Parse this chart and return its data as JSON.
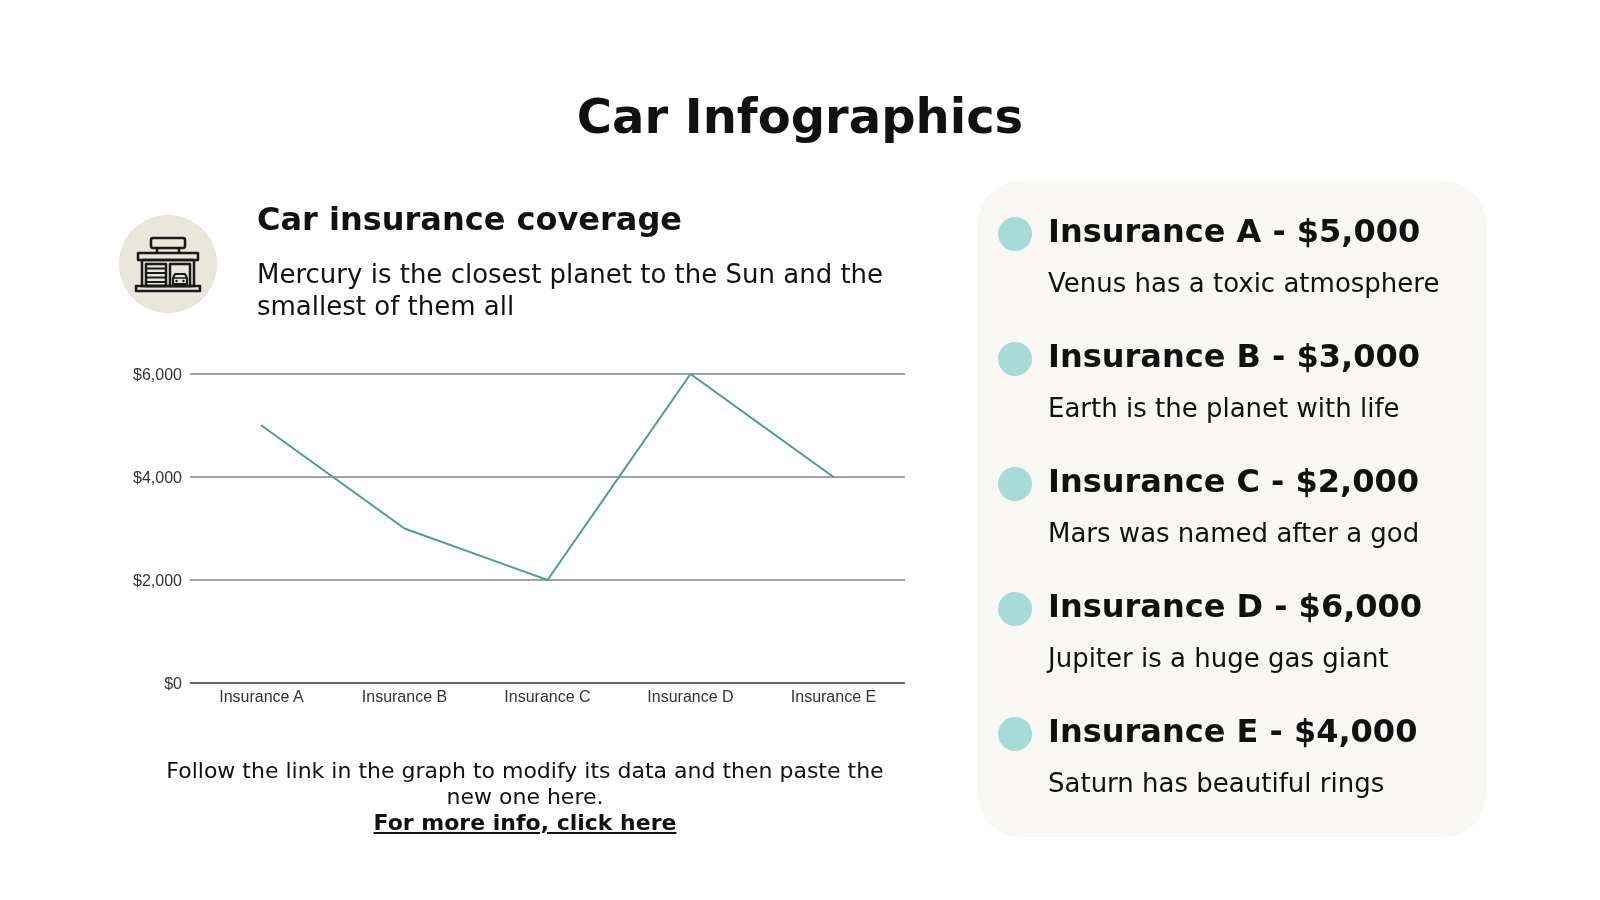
{
  "chart_data": [
    {
      "type": "line",
      "title": "Car Infographics",
      "subtitle": "Car insurance coverage",
      "annotations": [
        "Mercury is the closest planet to the Sun and the smallest of them all",
        "Follow the link in the graph to modify its data and then paste the new one here.",
        "For more info, click here"
      ],
      "categories": [
        "Insurance A",
        "Insurance B",
        "Insurance C",
        "Insurance D",
        "Insurance E"
      ],
      "series": [
        {
          "color": "#4a9e98",
          "values": [
            5000,
            3000,
            2000,
            6000,
            4000
          ]
        }
      ],
      "ylim": [
        0,
        6000
      ],
      "yticks": [
        {
          "value": 0,
          "label": "$0"
        },
        {
          "value": 2000,
          "label": "$2,000"
        },
        {
          "value": 4000,
          "label": "$4,000"
        },
        {
          "value": 6000,
          "label": "$6,000"
        }
      ],
      "grid": "y"
    },
    {
      "type": "other",
      "annotations": [
        "Insurance A - $5,000",
        "Venus has a toxic atmosphere",
        "Insurance B - $3,000",
        "Earth is the planet with life",
        "Insurance C - $2,000",
        "Mars was named after a god",
        "Insurance D - $6,000",
        "Jupiter is a huge gas giant",
        "Insurance E - $4,000",
        "Saturn has beautiful rings"
      ]
    }
  ]
}
